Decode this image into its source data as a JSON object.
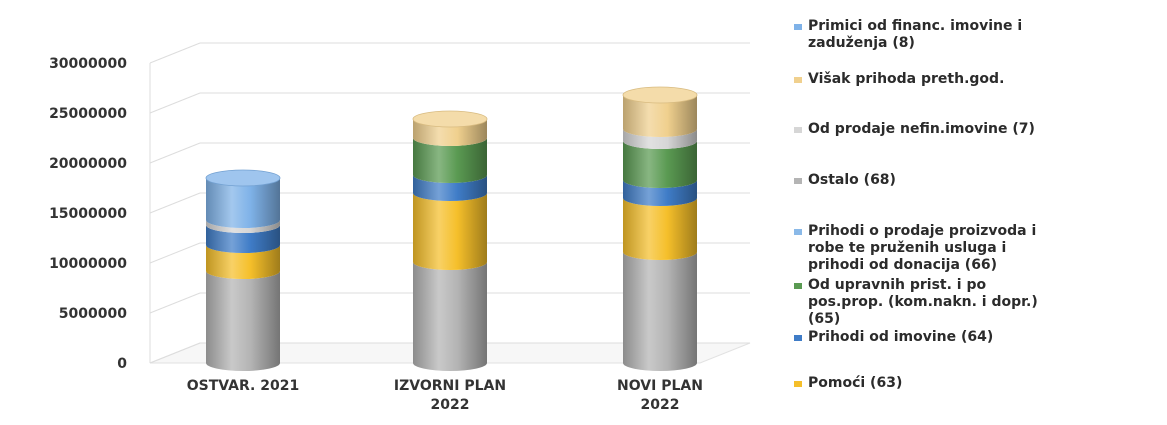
{
  "chart_data": {
    "type": "bar",
    "stacked": true,
    "style": "3d-cylinder",
    "categories": [
      "OSTVAR. 2021",
      "IZVORNI PLAN 2022",
      "NOVI PLAN 2022"
    ],
    "category_lines": [
      [
        "OSTVAR. 2021"
      ],
      [
        "IZVORNI PLAN",
        "2022"
      ],
      [
        "NOVI PLAN",
        "2022"
      ]
    ],
    "y_ticks": [
      "0",
      "5000000",
      "10000000",
      "15000000",
      "20000000",
      "25000000",
      "30000000"
    ],
    "ylim": [
      0,
      30000000
    ],
    "grid": true,
    "legend_position": "right",
    "series": [
      {
        "name": "Ostalo (68)",
        "name_lines": [
          "Ostalo (68)"
        ],
        "color": "#b4b4b4",
        "values": [
          9200000,
          10100000,
          11100000
        ]
      },
      {
        "name": "Pomoći (63)",
        "name_lines": [
          "Pomoći (63)"
        ],
        "color": "#f5bf2a",
        "values": [
          2600000,
          6900000,
          5400000
        ]
      },
      {
        "name": "Prihodi od imovine (64)",
        "name_lines": [
          "Prihodi od imovine (64)"
        ],
        "color": "#3f7cc7",
        "values": [
          2000000,
          1800000,
          1800000
        ]
      },
      {
        "name": "Od upravnih prist. i po pos.prop. (kom.nakn. i dopr.) (65)",
        "name_lines": [
          "Od upravnih prist. i po",
          "pos.prop. (kom.nakn. i dopr.)",
          "(65)"
        ],
        "color": "#5a9a52",
        "values": [
          0,
          3700000,
          3900000
        ]
      },
      {
        "name": "Prihodi o prodaje proizvoda i robe te pruženih usluga i prihodi od donacija (66)",
        "name_lines": [
          "Prihodi o prodaje proizvoda i",
          "robe te pruženih usluga i",
          "prihodi od donacija (66)"
        ],
        "color": "#8ab9e8",
        "values": [
          0,
          0,
          0
        ]
      },
      {
        "name": "Od prodaje nefin.imovine (7)",
        "name_lines": [
          "Od prodaje nefin.imovine (7)"
        ],
        "color": "#d6d6d6",
        "values": [
          500000,
          0,
          1200000
        ]
      },
      {
        "name": "Višak prihoda preth.god.",
        "name_lines": [
          "Višak prihoda preth.god."
        ],
        "color": "#f0d08e",
        "values": [
          0,
          1900000,
          3400000
        ]
      },
      {
        "name": "Primici od financ. imovine i zaduženja (8)",
        "name_lines": [
          "Primici od financ. imovine  i",
          "zaduženja (8)"
        ],
        "color": "#7fb2e8",
        "values": [
          4200000,
          0,
          0
        ]
      }
    ]
  }
}
